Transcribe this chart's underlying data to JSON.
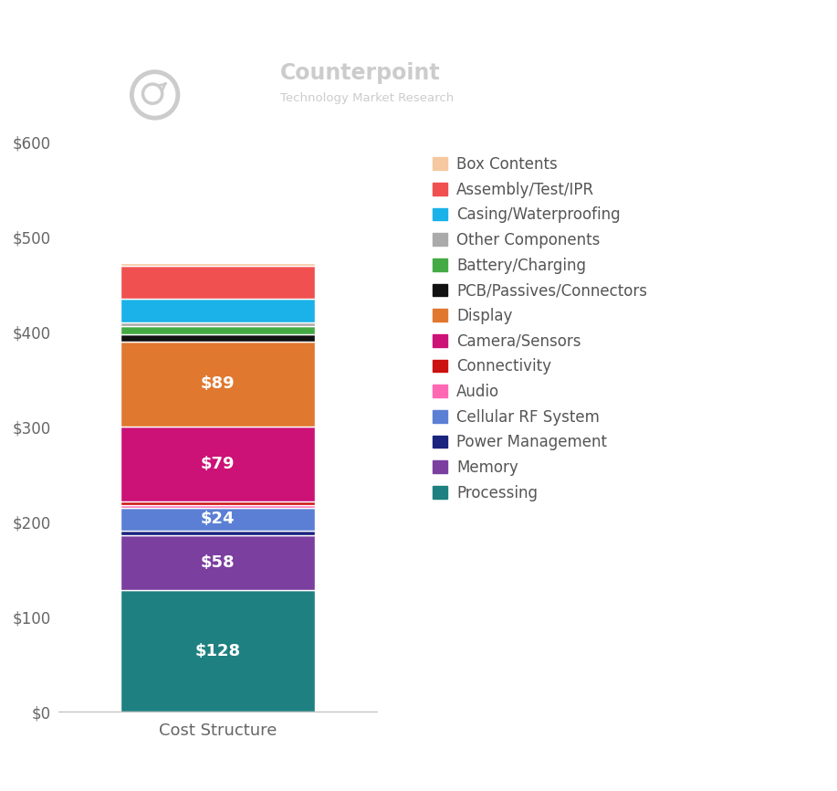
{
  "categories": [
    "Cost Structure"
  ],
  "segments": [
    {
      "label": "Processing",
      "value": 128,
      "color": "#1e8080",
      "text": "$128"
    },
    {
      "label": "Memory",
      "value": 58,
      "color": "#7b3fa0",
      "text": "$58"
    },
    {
      "label": "Power Management",
      "value": 5,
      "color": "#1a237e",
      "text": ""
    },
    {
      "label": "Cellular RF System",
      "value": 24,
      "color": "#5b7fd4",
      "text": "$24"
    },
    {
      "label": "Audio",
      "value": 3,
      "color": "#ff69b4",
      "text": ""
    },
    {
      "label": "Connectivity",
      "value": 4,
      "color": "#cc1111",
      "text": ""
    },
    {
      "label": "Camera/Sensors",
      "value": 79,
      "color": "#cc1177",
      "text": "$79"
    },
    {
      "label": "Display",
      "value": 89,
      "color": "#e07830",
      "text": "$89"
    },
    {
      "label": "PCB/Passives/Connectors",
      "value": 8,
      "color": "#111111",
      "text": ""
    },
    {
      "label": "Battery/Charging",
      "value": 8,
      "color": "#44aa44",
      "text": ""
    },
    {
      "label": "Other Components",
      "value": 4,
      "color": "#aaaaaa",
      "text": ""
    },
    {
      "label": "Casing/Waterproofing",
      "value": 25,
      "color": "#1ab2e8",
      "text": ""
    },
    {
      "label": "Assembly/Test/IPR",
      "value": 35,
      "color": "#f05050",
      "text": ""
    },
    {
      "label": "Box Contents",
      "value": 3,
      "color": "#f5c8a0",
      "text": ""
    }
  ],
  "legend_order": [
    "Box Contents",
    "Assembly/Test/IPR",
    "Casing/Waterproofing",
    "Other Components",
    "Battery/Charging",
    "PCB/Passives/Connectors",
    "Display",
    "Camera/Sensors",
    "Connectivity",
    "Audio",
    "Cellular RF System",
    "Power Management",
    "Memory",
    "Processing"
  ],
  "xlabel": "Cost Structure",
  "ylim": [
    0,
    600
  ],
  "yticks": [
    0,
    100,
    200,
    300,
    400,
    500,
    600
  ],
  "yticklabels": [
    "$0",
    "$100",
    "$200",
    "$300",
    "$400",
    "$500",
    "$600"
  ],
  "background_color": "#ffffff",
  "text_color": "#ffffff",
  "label_fontsize": 13,
  "xlabel_fontsize": 13,
  "ytick_fontsize": 12
}
